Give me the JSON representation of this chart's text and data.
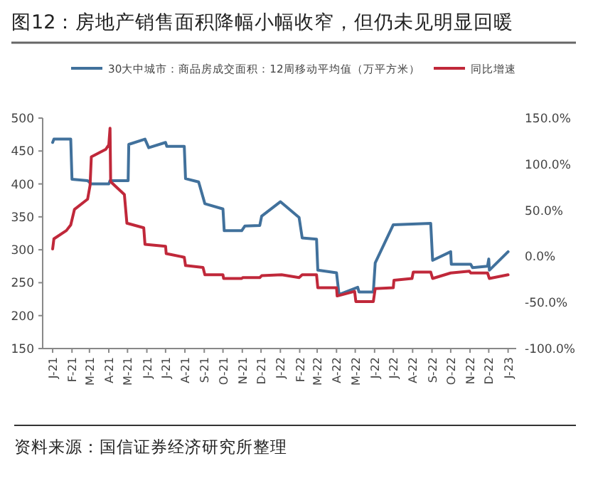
{
  "chart_data": {
    "type": "line",
    "title": "图12：房地产销售面积降幅小幅收窄，但仍未见明显回暖",
    "annotations": [
      "资料来源：国信证券经济研究所整理"
    ],
    "legend": "top",
    "xlim": [
      "2020-12-16",
      "2023-01-14"
    ],
    "xticks": [
      {
        "value": "2021-01-01",
        "label": "J-21"
      },
      {
        "value": "2021-02-01",
        "label": "F-21"
      },
      {
        "value": "2021-03-01",
        "label": "M-21"
      },
      {
        "value": "2021-04-01",
        "label": "A-21"
      },
      {
        "value": "2021-05-01",
        "label": "M-21"
      },
      {
        "value": "2021-06-01",
        "label": "J-21"
      },
      {
        "value": "2021-07-01",
        "label": "J-21"
      },
      {
        "value": "2021-08-01",
        "label": "A-21"
      },
      {
        "value": "2021-09-01",
        "label": "S-21"
      },
      {
        "value": "2021-10-01",
        "label": "O-21"
      },
      {
        "value": "2021-11-01",
        "label": "N-21"
      },
      {
        "value": "2021-12-01",
        "label": "D-21"
      },
      {
        "value": "2022-01-01",
        "label": "J-22"
      },
      {
        "value": "2022-02-01",
        "label": "F-22"
      },
      {
        "value": "2022-03-01",
        "label": "M-22"
      },
      {
        "value": "2022-04-01",
        "label": "A-22"
      },
      {
        "value": "2022-05-01",
        "label": "M-22"
      },
      {
        "value": "2022-06-01",
        "label": "J-22"
      },
      {
        "value": "2022-07-01",
        "label": "J-22"
      },
      {
        "value": "2022-08-01",
        "label": "A-22"
      },
      {
        "value": "2022-09-01",
        "label": "S-22"
      },
      {
        "value": "2022-10-01",
        "label": "O-22"
      },
      {
        "value": "2022-11-01",
        "label": "N-22"
      },
      {
        "value": "2022-12-01",
        "label": "D-22"
      },
      {
        "value": "2023-01-01",
        "label": "J-23"
      }
    ],
    "ylim": [
      150,
      500
    ],
    "yticks": [
      150,
      200,
      250,
      300,
      350,
      400,
      450,
      500
    ],
    "y2lim": [
      -100,
      150
    ],
    "y2ticks": [
      {
        "value": -100,
        "label": "-100.0%"
      },
      {
        "value": -50,
        "label": "-50.0%"
      },
      {
        "value": 0,
        "label": "0.0%"
      },
      {
        "value": 50,
        "label": "50.0%"
      },
      {
        "value": 100,
        "label": "100.0%"
      },
      {
        "value": 150,
        "label": "150.0%"
      }
    ],
    "series": [
      {
        "name": "30大中城市：商品房成交面积：12周移动平均值（万平方米）",
        "color": "#41719c",
        "x": [
          "2021-01-01",
          "2021-01-03",
          "2021-01-30",
          "2021-02-01",
          "2021-02-26",
          "2021-03-04",
          "2021-04-01",
          "2021-04-03",
          "2021-05-02",
          "2021-05-03",
          "2021-05-29",
          "2021-06-04",
          "2021-07-01",
          "2021-07-03",
          "2021-07-31",
          "2021-08-02",
          "2021-08-23",
          "2021-09-02",
          "2021-10-01",
          "2021-10-03",
          "2021-10-31",
          "2021-11-05",
          "2021-11-29",
          "2021-12-02",
          "2022-01-01",
          "2022-01-31",
          "2022-02-05",
          "2022-02-28",
          "2022-03-02",
          "2022-04-01",
          "2022-04-05",
          "2022-05-05",
          "2022-05-07",
          "2022-05-30",
          "2022-06-02",
          "2022-07-01",
          "2022-08-30",
          "2022-09-02",
          "2022-10-01",
          "2022-10-02",
          "2022-11-02",
          "2022-11-05",
          "2022-11-29",
          "2022-12-01",
          "2022-12-02",
          "2023-01-01"
        ],
        "values": [
          463,
          468,
          468,
          407,
          405,
          400,
          400,
          405,
          405,
          460,
          468,
          455,
          463,
          457,
          457,
          408,
          403,
          370,
          362,
          329,
          329,
          336,
          337,
          351,
          373,
          349,
          318,
          316,
          269,
          265,
          232,
          243,
          236,
          236,
          280,
          338,
          340,
          284,
          297,
          278,
          278,
          273,
          275,
          286,
          269,
          297
        ]
      },
      {
        "name": "同比增速",
        "color": "#c0283a",
        "axis": "y2",
        "x": [
          "2021-01-01",
          "2021-01-03",
          "2021-01-23",
          "2021-01-30",
          "2021-02-05",
          "2021-02-26",
          "2021-03-02",
          "2021-03-04",
          "2021-03-27",
          "2021-04-01",
          "2021-04-03",
          "2021-04-04",
          "2021-04-26",
          "2021-04-30",
          "2021-05-27",
          "2021-05-29",
          "2021-07-01",
          "2021-07-02",
          "2021-07-31",
          "2021-08-02",
          "2021-08-30",
          "2021-09-02",
          "2021-10-01",
          "2021-10-02",
          "2021-10-31",
          "2021-11-02",
          "2021-11-29",
          "2021-12-02",
          "2022-01-03",
          "2022-01-31",
          "2022-02-05",
          "2022-02-28",
          "2022-03-02",
          "2022-04-01",
          "2022-04-02",
          "2022-04-30",
          "2022-05-02",
          "2022-05-30",
          "2022-06-02",
          "2022-07-01",
          "2022-07-02",
          "2022-07-31",
          "2022-08-02",
          "2022-08-30",
          "2022-09-02",
          "2022-10-01",
          "2022-10-31",
          "2022-11-02",
          "2022-11-29",
          "2022-12-02",
          "2023-01-01"
        ],
        "values": [
          8,
          19,
          28,
          34,
          51,
          62,
          77,
          108,
          116,
          121,
          139,
          81,
          67,
          36,
          31,
          13,
          11,
          3,
          -1,
          -10,
          -12,
          -20,
          -20,
          -24,
          -24,
          -23,
          -23,
          -21,
          -20,
          -23,
          -20,
          -20,
          -34,
          -34,
          -43,
          -38,
          -49,
          -49,
          -35,
          -34,
          -26,
          -24,
          -17,
          -17,
          -24,
          -18,
          -16,
          -18,
          -18,
          -24,
          -20
        ]
      }
    ]
  }
}
